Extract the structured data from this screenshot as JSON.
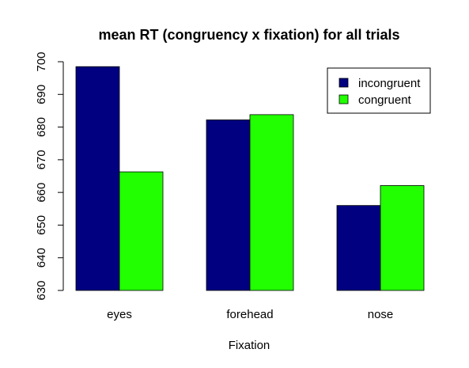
{
  "chart_data": {
    "type": "bar",
    "title": "mean RT (congruency x fixation) for all trials",
    "xlabel": "Fixation",
    "ylabel": "",
    "categories": [
      "eyes",
      "forehead",
      "nose"
    ],
    "series": [
      {
        "name": "incongruent",
        "color": "#000080",
        "values": [
          698.5,
          682.2,
          656.0
        ]
      },
      {
        "name": "congruent",
        "color": "#22ff00",
        "values": [
          666.3,
          683.8,
          662.1
        ]
      }
    ],
    "ylim": [
      630,
      700
    ],
    "yticks": [
      "630",
      "640",
      "650",
      "660",
      "670",
      "680",
      "690",
      "700"
    ],
    "grid": false,
    "legend_position": "top-right",
    "bar_baseline": 630
  }
}
